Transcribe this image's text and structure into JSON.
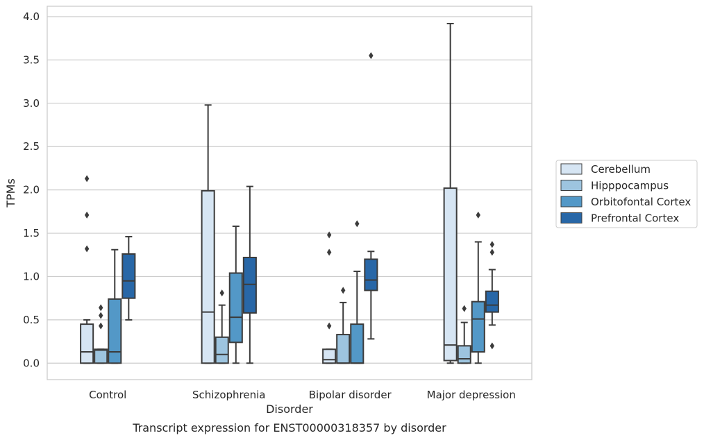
{
  "chart_data": {
    "type": "box",
    "title": "",
    "caption": "Transcript expression for ENST00000318357 by disorder",
    "xlabel": "Disorder",
    "ylabel": "TPMs",
    "ylim": [
      -0.19,
      4.12
    ],
    "yticks": [
      "0.0",
      "0.5",
      "1.0",
      "1.5",
      "2.0",
      "2.5",
      "3.0",
      "3.5",
      "4.0"
    ],
    "grid": "horizontal",
    "legend_position": "right",
    "categories": [
      "Control",
      "Schizophrenia",
      "Bipolar disorder",
      "Major depression"
    ],
    "series": [
      {
        "name": "Cerebellum",
        "color": "#d6e5f3",
        "boxes": [
          {
            "q1": 0.0,
            "median": 0.13,
            "q3": 0.45,
            "whisker_low": 0.0,
            "whisker_high": 0.5,
            "outliers": [
              1.32,
              1.71,
              2.13
            ]
          },
          {
            "q1": 0.0,
            "median": 0.59,
            "q3": 1.99,
            "whisker_low": 0.0,
            "whisker_high": 2.98,
            "outliers": []
          },
          {
            "q1": 0.0,
            "median": 0.04,
            "q3": 0.16,
            "whisker_low": 0.0,
            "whisker_high": 0.16,
            "outliers": [
              0.43,
              1.28,
              1.48
            ]
          },
          {
            "q1": 0.03,
            "median": 0.21,
            "q3": 2.02,
            "whisker_low": 0.0,
            "whisker_high": 3.92,
            "outliers": []
          }
        ]
      },
      {
        "name": "Hipppocampus",
        "color": "#9dc4df",
        "boxes": [
          {
            "q1": 0.0,
            "median": 0.15,
            "q3": 0.16,
            "whisker_low": 0.0,
            "whisker_high": 0.16,
            "outliers": [
              0.43,
              0.55,
              0.64
            ]
          },
          {
            "q1": 0.0,
            "median": 0.1,
            "q3": 0.3,
            "whisker_low": 0.0,
            "whisker_high": 0.67,
            "outliers": [
              0.81
            ]
          },
          {
            "q1": 0.0,
            "median": 0.0,
            "q3": 0.33,
            "whisker_low": 0.0,
            "whisker_high": 0.7,
            "outliers": [
              0.84
            ]
          },
          {
            "q1": 0.0,
            "median": 0.05,
            "q3": 0.2,
            "whisker_low": 0.0,
            "whisker_high": 0.47,
            "outliers": [
              0.63
            ]
          }
        ]
      },
      {
        "name": "Orbitofontal Cortex",
        "color": "#5398c7",
        "boxes": [
          {
            "q1": 0.0,
            "median": 0.13,
            "q3": 0.74,
            "whisker_low": 0.0,
            "whisker_high": 1.31,
            "outliers": []
          },
          {
            "q1": 0.24,
            "median": 0.53,
            "q3": 1.04,
            "whisker_low": 0.0,
            "whisker_high": 1.58,
            "outliers": []
          },
          {
            "q1": 0.0,
            "median": 0.0,
            "q3": 0.45,
            "whisker_low": 0.0,
            "whisker_high": 1.06,
            "outliers": [
              1.61
            ]
          },
          {
            "q1": 0.13,
            "median": 0.51,
            "q3": 0.71,
            "whisker_low": 0.0,
            "whisker_high": 1.4,
            "outliers": [
              1.71
            ]
          }
        ]
      },
      {
        "name": "Prefrontal Cortex",
        "color": "#2867a7",
        "boxes": [
          {
            "q1": 0.75,
            "median": 0.95,
            "q3": 1.26,
            "whisker_low": 0.5,
            "whisker_high": 1.46,
            "outliers": []
          },
          {
            "q1": 0.58,
            "median": 0.91,
            "q3": 1.22,
            "whisker_low": 0.0,
            "whisker_high": 2.04,
            "outliers": []
          },
          {
            "q1": 0.84,
            "median": 0.96,
            "q3": 1.2,
            "whisker_low": 0.28,
            "whisker_high": 1.29,
            "outliers": [
              3.55
            ]
          },
          {
            "q1": 0.59,
            "median": 0.67,
            "q3": 0.83,
            "whisker_low": 0.44,
            "whisker_high": 1.08,
            "outliers": [
              0.2,
              1.28,
              1.37
            ]
          }
        ]
      }
    ]
  }
}
